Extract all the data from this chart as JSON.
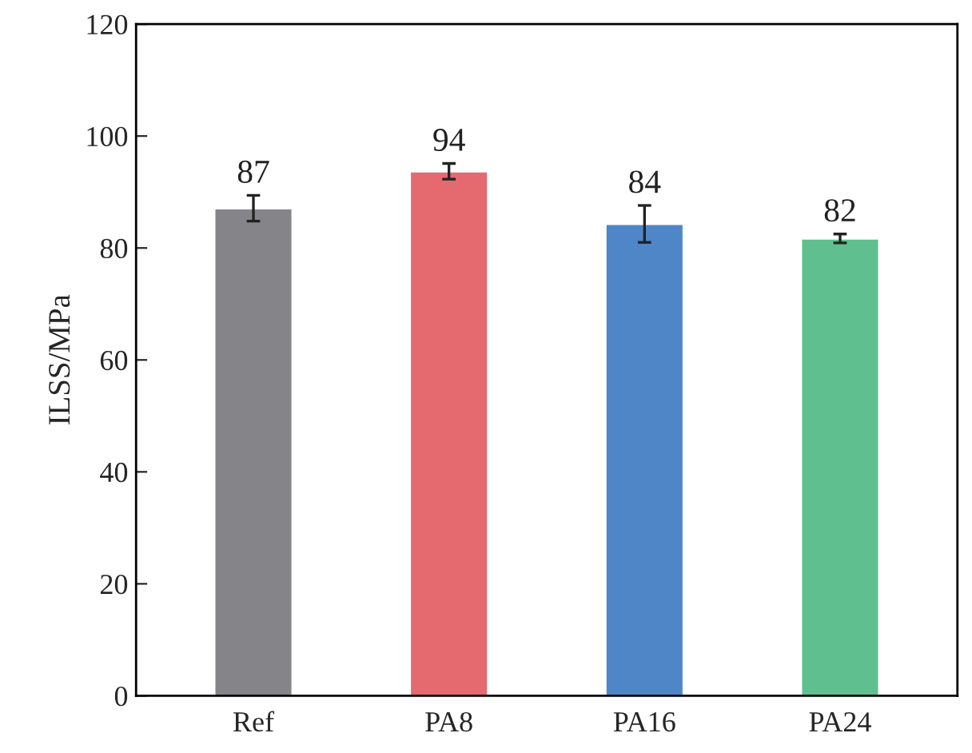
{
  "chart_data": {
    "type": "bar",
    "ylabel": "ILSS/MPa",
    "categories": [
      "Ref",
      "PA8",
      "PA16",
      "PA24"
    ],
    "values": [
      87.1,
      93.7,
      84.3,
      81.7
    ],
    "value_labels": [
      "87",
      "94",
      "84",
      "82"
    ],
    "errors": [
      2.3,
      1.4,
      3.3,
      0.8
    ],
    "colors": [
      "#858589",
      "#e46a70",
      "#4f86c8",
      "#5fbf8e"
    ],
    "ylim": [
      0,
      120
    ],
    "yticks": [
      0,
      20,
      40,
      60,
      80,
      100,
      120
    ],
    "grid": false,
    "legend": false
  }
}
